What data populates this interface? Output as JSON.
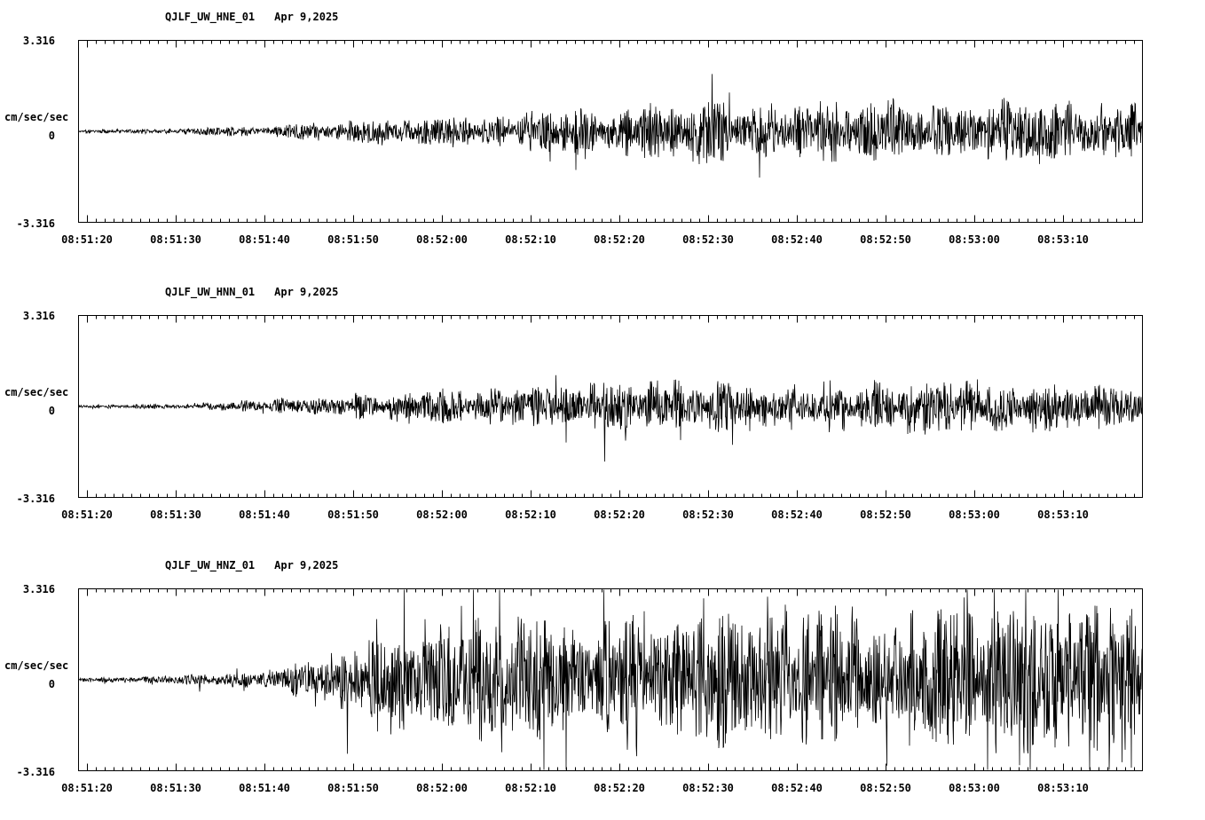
{
  "page": {
    "background": "#ffffff",
    "ink": "#000000"
  },
  "chart_data": [
    {
      "type": "line",
      "title": "QJLF_UW_HNE_01",
      "date_label": "Apr 9,2025",
      "ylabel": "cm/sec/sec",
      "y_top_label": "3.316",
      "y_zero_label": "0",
      "y_bottom_label": "-3.316",
      "ylim": [
        -3.316,
        3.316
      ],
      "x_tick_labels": [
        "08:51:20",
        "08:51:30",
        "08:51:40",
        "08:51:50",
        "08:52:00",
        "08:52:10",
        "08:52:20",
        "08:52:30",
        "08:52:40",
        "08:52:50",
        "08:53:00",
        "08:53:10"
      ],
      "seconds_span": 120,
      "seconds_per_major_tick": 10,
      "grid": false,
      "envelope": [
        0.05,
        0.08,
        0.15,
        0.3,
        0.45,
        0.55,
        0.75,
        0.85,
        0.8,
        0.9,
        0.85,
        0.95,
        0.9
      ],
      "spike_prob": 0.015,
      "spike_gain": 1.8,
      "seed": 7
    },
    {
      "type": "line",
      "title": "QJLF_UW_HNN_01",
      "date_label": "Apr 9,2025",
      "ylabel": "cm/sec/sec",
      "y_top_label": "3.316",
      "y_zero_label": "0",
      "y_bottom_label": "-3.316",
      "ylim": [
        -3.316,
        3.316
      ],
      "x_tick_labels": [
        "08:51:20",
        "08:51:30",
        "08:51:40",
        "08:51:50",
        "08:52:00",
        "08:52:10",
        "08:52:20",
        "08:52:30",
        "08:52:40",
        "08:52:50",
        "08:53:00",
        "08:53:10"
      ],
      "seconds_span": 120,
      "seconds_per_major_tick": 10,
      "grid": false,
      "envelope": [
        0.05,
        0.08,
        0.18,
        0.35,
        0.5,
        0.55,
        0.7,
        0.75,
        0.65,
        0.75,
        0.8,
        0.7,
        0.65
      ],
      "spike_prob": 0.015,
      "spike_gain": 1.8,
      "seed": 21
    },
    {
      "type": "line",
      "title": "QJLF_UW_HNZ_01",
      "date_label": "Apr 9,2025",
      "ylabel": "cm/sec/sec",
      "y_top_label": "3.316",
      "y_zero_label": "0",
      "y_bottom_label": "-3.316",
      "ylim": [
        -3.316,
        3.316
      ],
      "x_tick_labels": [
        "08:51:20",
        "08:51:30",
        "08:51:40",
        "08:51:50",
        "08:52:00",
        "08:52:10",
        "08:52:20",
        "08:52:30",
        "08:52:40",
        "08:52:50",
        "08:53:00",
        "08:53:10"
      ],
      "seconds_span": 120,
      "seconds_per_major_tick": 10,
      "grid": false,
      "envelope": [
        0.06,
        0.1,
        0.25,
        0.9,
        1.6,
        1.7,
        1.9,
        1.8,
        2.1,
        1.9,
        2.0,
        2.1,
        2.0
      ],
      "spike_prob": 0.05,
      "spike_gain": 1.7,
      "seed": 42
    }
  ]
}
